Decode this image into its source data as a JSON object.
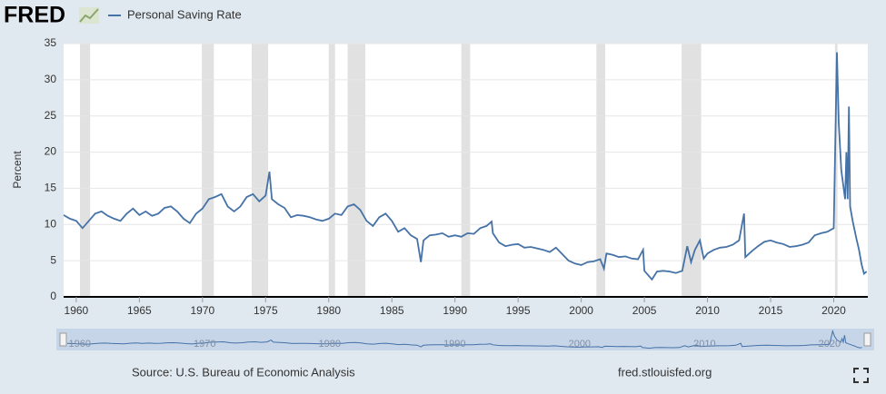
{
  "logo": "FRED",
  "chart_data": {
    "type": "line",
    "y_label": "Percent",
    "x": [
      1959.0,
      1959.5,
      1960.0,
      1960.5,
      1961.0,
      1961.5,
      1962.0,
      1962.5,
      1963.0,
      1963.5,
      1964.0,
      1964.5,
      1965.0,
      1965.5,
      1966.0,
      1966.5,
      1967.0,
      1967.5,
      1968.0,
      1968.5,
      1969.0,
      1969.5,
      1970.0,
      1970.5,
      1971.0,
      1971.5,
      1972.0,
      1972.5,
      1973.0,
      1973.5,
      1974.0,
      1974.5,
      1975.0,
      1975.3,
      1975.5,
      1976.0,
      1976.5,
      1977.0,
      1977.5,
      1978.0,
      1978.5,
      1979.0,
      1979.5,
      1980.0,
      1980.5,
      1981.0,
      1981.5,
      1982.0,
      1982.5,
      1983.0,
      1983.5,
      1984.0,
      1984.5,
      1985.0,
      1985.5,
      1986.0,
      1986.5,
      1987.0,
      1987.3,
      1987.5,
      1988.0,
      1988.5,
      1989.0,
      1989.5,
      1990.0,
      1990.5,
      1991.0,
      1991.5,
      1992.0,
      1992.5,
      1992.9,
      1993.0,
      1993.5,
      1994.0,
      1994.5,
      1995.0,
      1995.5,
      1996.0,
      1996.5,
      1997.0,
      1997.5,
      1998.0,
      1998.5,
      1999.0,
      1999.5,
      2000.0,
      2000.5,
      2001.0,
      2001.5,
      2001.8,
      2002.0,
      2002.5,
      2003.0,
      2003.5,
      2004.0,
      2004.5,
      2004.9,
      2005.0,
      2005.6,
      2006.0,
      2006.5,
      2007.0,
      2007.5,
      2008.0,
      2008.4,
      2008.7,
      2009.0,
      2009.4,
      2009.7,
      2010.0,
      2010.5,
      2011.0,
      2011.5,
      2012.0,
      2012.5,
      2012.9,
      2013.0,
      2013.5,
      2014.0,
      2014.5,
      2015.0,
      2015.5,
      2016.0,
      2016.5,
      2017.0,
      2017.5,
      2018.0,
      2018.5,
      2019.0,
      2019.5,
      2020.0,
      2020.25,
      2020.4,
      2020.6,
      2020.9,
      2021.0,
      2021.1,
      2021.2,
      2021.3,
      2021.5,
      2021.8,
      2022.0,
      2022.2,
      2022.4,
      2022.6
    ],
    "series": [
      {
        "name": "Personal Saving Rate",
        "color": "#4572a7",
        "values": [
          11.3,
          10.8,
          10.5,
          9.5,
          10.5,
          11.5,
          11.8,
          11.2,
          10.8,
          10.5,
          11.5,
          12.2,
          11.3,
          11.8,
          11.2,
          11.5,
          12.3,
          12.5,
          11.8,
          10.8,
          10.2,
          11.5,
          12.2,
          13.5,
          13.8,
          14.2,
          12.5,
          11.8,
          12.5,
          13.8,
          14.2,
          13.2,
          14.0,
          17.3,
          13.5,
          12.8,
          12.3,
          11.0,
          11.3,
          11.2,
          11.0,
          10.7,
          10.5,
          10.8,
          11.5,
          11.3,
          12.5,
          12.8,
          12.0,
          10.5,
          9.8,
          11.0,
          11.5,
          10.5,
          9.0,
          9.5,
          8.5,
          8.0,
          4.8,
          7.8,
          8.5,
          8.6,
          8.8,
          8.3,
          8.5,
          8.3,
          8.8,
          8.7,
          9.5,
          9.8,
          10.4,
          8.8,
          7.5,
          7.0,
          7.2,
          7.3,
          6.8,
          6.9,
          6.7,
          6.5,
          6.2,
          6.8,
          5.9,
          5.0,
          4.6,
          4.4,
          4.8,
          4.9,
          5.2,
          3.9,
          6.0,
          5.8,
          5.5,
          5.6,
          5.3,
          5.2,
          6.5,
          3.6,
          2.4,
          3.5,
          3.6,
          3.5,
          3.3,
          3.6,
          7.0,
          4.8,
          6.5,
          7.8,
          5.3,
          6.0,
          6.5,
          6.8,
          6.9,
          7.2,
          7.8,
          11.5,
          5.5,
          6.3,
          7.0,
          7.6,
          7.8,
          7.5,
          7.3,
          6.9,
          7.0,
          7.2,
          7.5,
          8.5,
          8.8,
          9.0,
          9.5,
          33.8,
          24.0,
          17.5,
          13.5,
          20.0,
          13.5,
          26.3,
          12.5,
          10.5,
          8.0,
          6.5,
          4.5,
          3.2,
          3.5
        ]
      }
    ],
    "recessions": [
      [
        1960.3,
        1961.1
      ],
      [
        1969.95,
        1970.9
      ],
      [
        1973.9,
        1975.2
      ],
      [
        1980.0,
        1980.5
      ],
      [
        1981.5,
        1982.9
      ],
      [
        1990.5,
        1991.2
      ],
      [
        2001.2,
        2001.9
      ],
      [
        2007.95,
        2009.5
      ],
      [
        2020.1,
        2020.3
      ]
    ],
    "recession_color": "#e1e1e1",
    "xlim": [
      1959.0,
      2022.7
    ],
    "xticks": [
      1960,
      1965,
      1970,
      1975,
      1980,
      1985,
      1990,
      1995,
      2000,
      2005,
      2010,
      2015,
      2020
    ],
    "ylim": [
      0,
      35
    ],
    "yticks": [
      0,
      5,
      10,
      15,
      20,
      25,
      30,
      35
    ],
    "grid": true,
    "source": "Source: U.S. Bureau of Economic Analysis",
    "site": "fred.stlouisfed.org"
  }
}
